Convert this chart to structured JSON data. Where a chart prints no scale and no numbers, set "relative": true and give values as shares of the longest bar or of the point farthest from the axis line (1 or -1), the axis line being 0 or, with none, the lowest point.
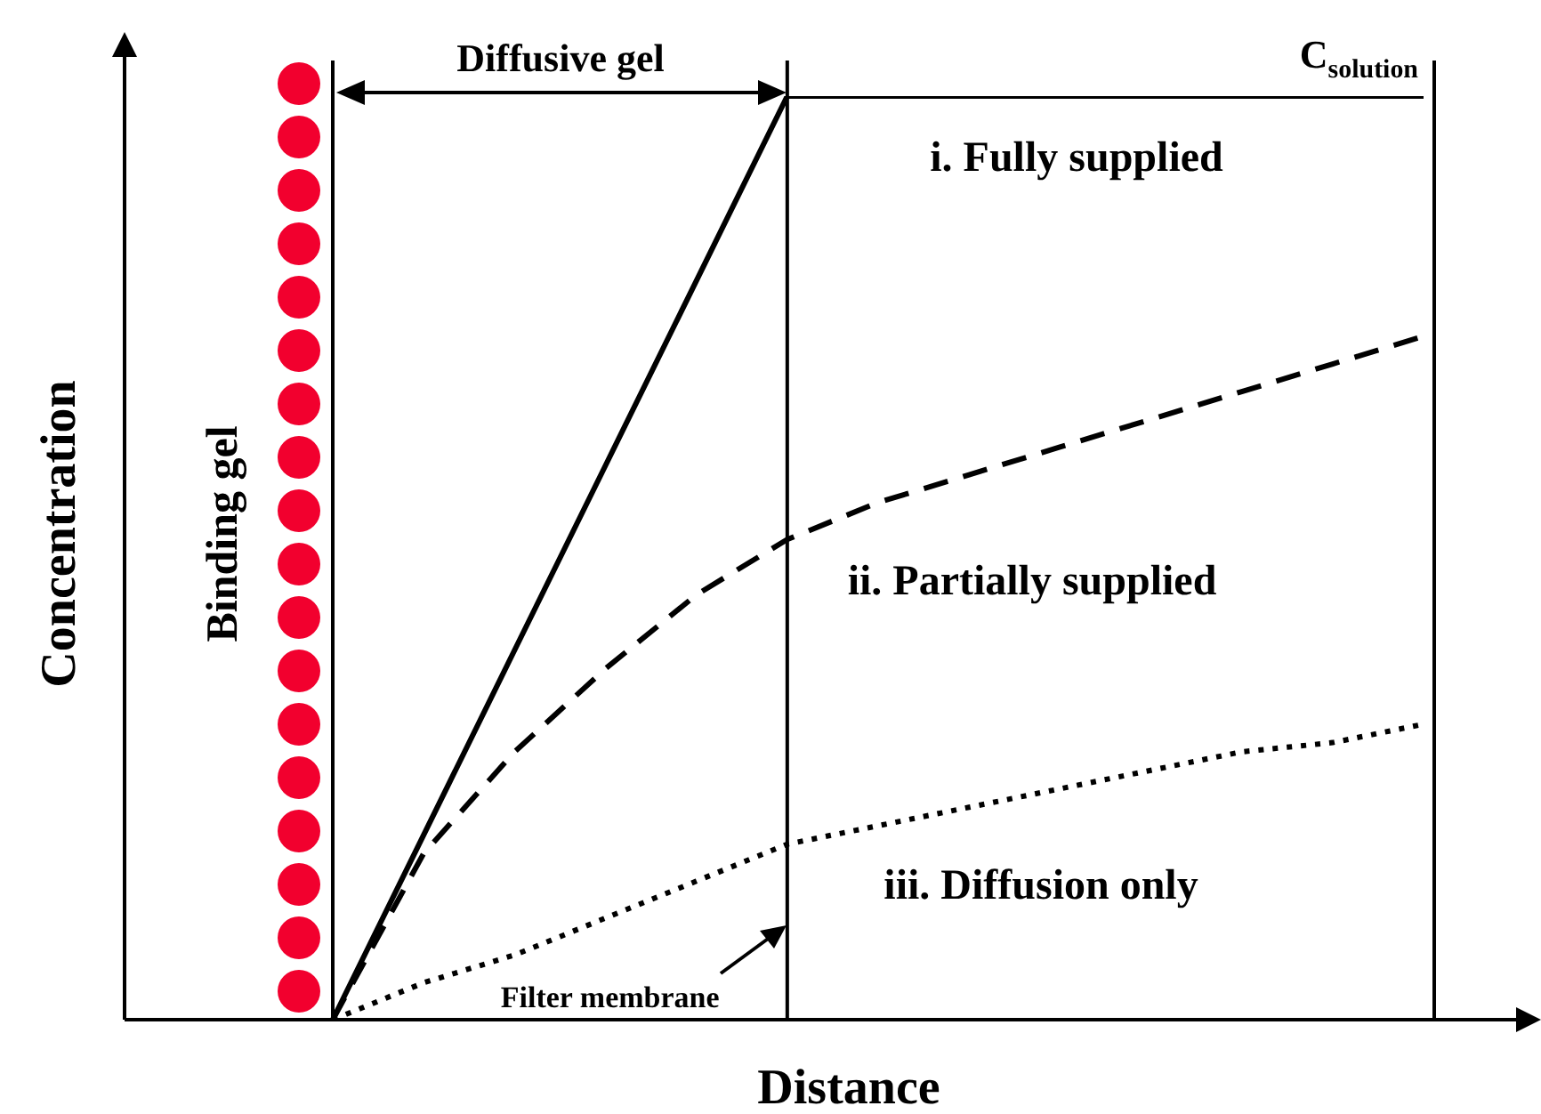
{
  "chart_data": {
    "type": "line",
    "relative": true,
    "xlabel": "Distance",
    "ylabel": "Concentration",
    "categories": [
      null,
      null,
      null,
      null,
      null,
      null,
      null,
      null,
      null,
      null,
      null,
      null,
      null
    ],
    "series": [
      {
        "color": "#000000",
        "line_style": "solid",
        "values": [
          0,
          0.2,
          0.4,
          0.6,
          0.8,
          1,
          1,
          1,
          1,
          1,
          1,
          1,
          1
        ]
      },
      {
        "color": "#000000",
        "line_style": "dashed",
        "values": [
          0,
          0.18,
          0.29,
          0.38,
          0.46,
          0.52,
          0.56,
          0.59,
          0.62,
          0.65,
          0.68,
          0.71,
          0.74
        ]
      },
      {
        "color": "#000000",
        "line_style": "dotted",
        "values": [
          0,
          0.04,
          0.07,
          0.11,
          0.15,
          0.19,
          0.21,
          0.23,
          0.25,
          0.27,
          0.29,
          0.3,
          0.32
        ]
      }
    ],
    "marker": "none",
    "legend": false,
    "grid": false,
    "tick_labels": false,
    "annotations": [
      "Diffusive gel",
      "C$_{solution}$",
      "i. Fully supplied",
      "ii. Partially supplied",
      "iii. Diffusion only",
      "Filter membrane",
      "Binding gel"
    ]
  }
}
